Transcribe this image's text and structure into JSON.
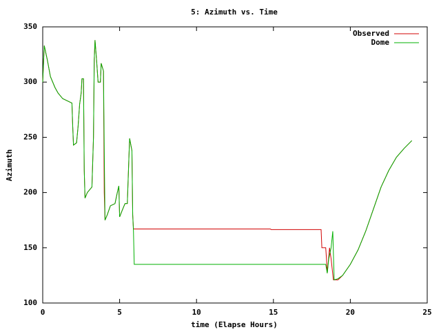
{
  "chart_data": {
    "type": "line",
    "title": "5: Azimuth vs. Time",
    "x_label": "time (Elapse Hours)",
    "y_label": "Azimuth",
    "xlim": [
      0,
      25
    ],
    "xticks": [
      0,
      5,
      10,
      15,
      20,
      25
    ],
    "ylim": [
      100,
      350
    ],
    "yticks": [
      100,
      150,
      200,
      250,
      300,
      350
    ],
    "legend": "top-right",
    "series": [
      {
        "name": "Observed",
        "color": "#d00000",
        "x": [
          0,
          0.1,
          0.3,
          0.5,
          0.8,
          1.0,
          1.3,
          1.9,
          1.95,
          2.0,
          2.2,
          2.3,
          2.4,
          2.5,
          2.55,
          2.65,
          2.7,
          2.75,
          2.9,
          3.2,
          3.3,
          3.35,
          3.4,
          3.5,
          3.6,
          3.75,
          3.8,
          3.95,
          4.0,
          4.05,
          4.2,
          4.4,
          4.7,
          4.85,
          4.95,
          5.0,
          5.2,
          5.35,
          5.5,
          5.6,
          5.65,
          5.8,
          5.85,
          5.9,
          14.8,
          14.85,
          18.1,
          18.15,
          18.4,
          18.45,
          18.5,
          18.65,
          18.75,
          18.9,
          19.2,
          19.5,
          20,
          20.5,
          21,
          21.5,
          22,
          22.5,
          23,
          23.5,
          24
        ],
        "values": [
          300,
          333,
          320,
          305,
          295,
          290,
          285,
          281,
          260,
          243,
          245,
          260,
          280,
          290,
          303,
          303,
          220,
          195,
          200,
          205,
          250,
          320,
          338,
          320,
          300,
          300,
          317,
          310,
          200,
          175,
          180,
          188,
          190,
          200,
          206,
          178,
          185,
          190,
          190,
          230,
          249,
          238,
          180,
          167,
          167,
          166.5,
          166.5,
          150,
          150,
          140,
          127,
          150,
          140,
          121,
          121,
          125,
          135,
          148,
          165,
          185,
          205,
          220,
          232,
          240,
          247
        ]
      },
      {
        "name": "Dome",
        "color": "#00b000",
        "x": [
          0,
          0.1,
          0.3,
          0.5,
          0.8,
          1.0,
          1.3,
          1.9,
          1.95,
          2.0,
          2.2,
          2.3,
          2.4,
          2.5,
          2.55,
          2.65,
          2.7,
          2.75,
          2.9,
          3.2,
          3.3,
          3.35,
          3.4,
          3.5,
          3.6,
          3.75,
          3.8,
          3.95,
          4.0,
          4.05,
          4.2,
          4.4,
          4.7,
          4.85,
          4.95,
          5.0,
          5.2,
          5.35,
          5.5,
          5.6,
          5.65,
          5.8,
          5.85,
          5.9,
          5.95,
          18.4,
          18.5,
          18.6,
          18.75,
          18.86,
          18.95,
          19.2,
          19.5,
          20,
          20.5,
          21,
          21.5,
          22,
          22.5,
          23,
          23.5,
          24
        ],
        "values": [
          300,
          333,
          320,
          305,
          295,
          290,
          285,
          281,
          260,
          243,
          245,
          260,
          280,
          290,
          303,
          303,
          220,
          195,
          200,
          205,
          250,
          320,
          338,
          320,
          300,
          300,
          317,
          310,
          240,
          175,
          180,
          188,
          190,
          200,
          206,
          178,
          185,
          190,
          190,
          230,
          249,
          238,
          180,
          165,
          135,
          135,
          127,
          140,
          150,
          165,
          121,
          122,
          125,
          135,
          148,
          165,
          185,
          205,
          220,
          232,
          240,
          247
        ]
      }
    ]
  }
}
